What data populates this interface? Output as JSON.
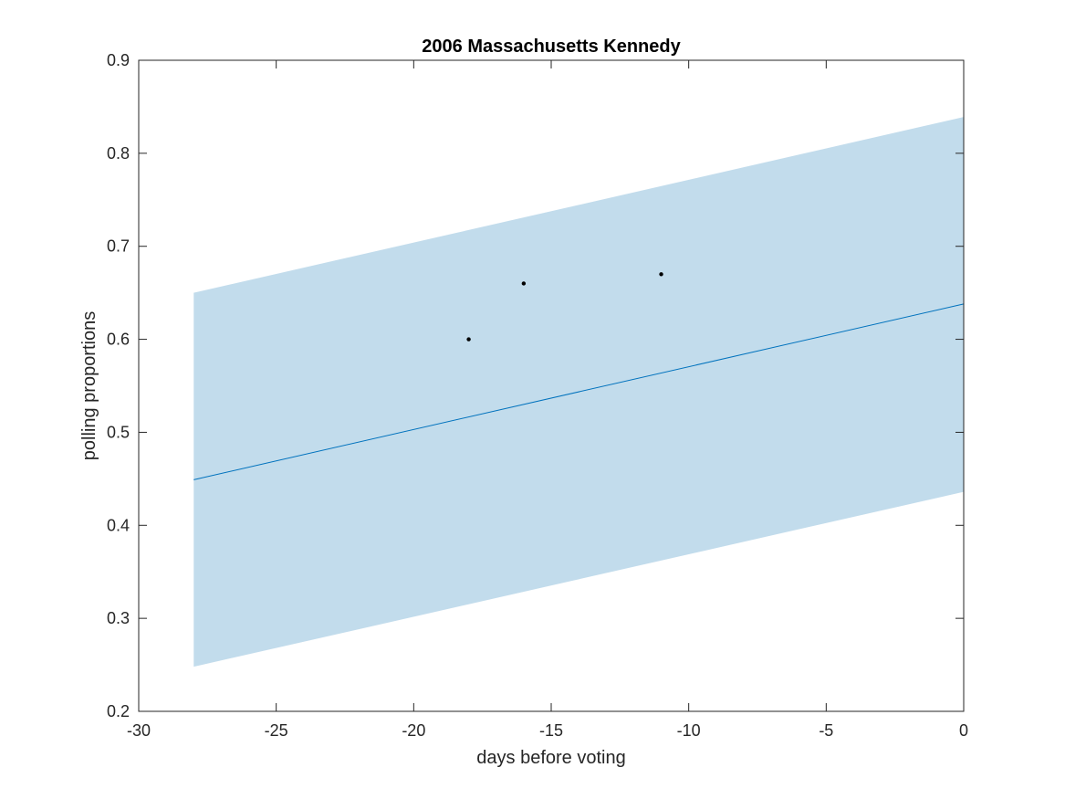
{
  "chart_data": {
    "type": "line",
    "title": "2006 Massachusetts Kennedy",
    "xlabel": "days before voting",
    "ylabel": "polling proportions",
    "xlim": [
      -30,
      0
    ],
    "ylim": [
      0.2,
      0.9
    ],
    "xticks": [
      -30,
      -25,
      -20,
      -15,
      -10,
      -5,
      0
    ],
    "xtick_labels": [
      "-30",
      "-25",
      "-20",
      "-15",
      "-10",
      "-5",
      "0"
    ],
    "yticks": [
      0.2,
      0.3,
      0.4,
      0.5,
      0.6,
      0.7,
      0.8,
      0.9
    ],
    "ytick_labels": [
      "0.2",
      "0.3",
      "0.4",
      "0.5",
      "0.6",
      "0.7",
      "0.8",
      "0.9"
    ],
    "grid": false,
    "band": {
      "x": [
        -28,
        0
      ],
      "lower": [
        0.248,
        0.436
      ],
      "upper": [
        0.65,
        0.839
      ],
      "color": "#c2dcec"
    },
    "trend_line": {
      "x": [
        -28,
        0
      ],
      "y": [
        0.449,
        0.638
      ],
      "color": "#0072bd"
    },
    "points": [
      {
        "x": -18,
        "y": 0.6
      },
      {
        "x": -16,
        "y": 0.66
      },
      {
        "x": -11,
        "y": 0.67
      }
    ],
    "point_color": "#000000"
  }
}
